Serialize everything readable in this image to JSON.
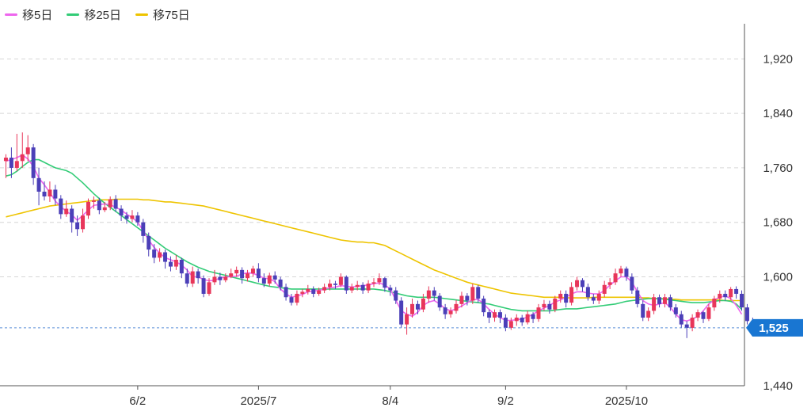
{
  "legend": {
    "ma5": {
      "label": "移5日",
      "color": "#ee66ee"
    },
    "ma25": {
      "label": "移25日",
      "color": "#33cc77"
    },
    "ma75": {
      "label": "移75日",
      "color": "#eec400"
    }
  },
  "colors": {
    "up": "#e8365a",
    "down": "#4b3fb8",
    "grid": "#d6d6d6",
    "axis": "#555555",
    "badge": "#1976d2",
    "current_line": "#5b8fd6"
  },
  "current_price": {
    "value": 1525,
    "label": "1,525"
  },
  "chart_data": {
    "type": "candlestick",
    "ylim": [
      1440,
      1960
    ],
    "y_ticks": [
      {
        "value": 1920,
        "label": "1,920"
      },
      {
        "value": 1840,
        "label": "1,840"
      },
      {
        "value": 1760,
        "label": "1,760"
      },
      {
        "value": 1680,
        "label": "1,680"
      },
      {
        "value": 1600,
        "label": "1,600"
      },
      {
        "value": 1440,
        "label": "1,440"
      }
    ],
    "x_ticks": [
      {
        "index": 24,
        "label": "6/2"
      },
      {
        "index": 46,
        "label": "2025/7"
      },
      {
        "index": 70,
        "label": "8/4"
      },
      {
        "index": 91,
        "label": "9/2"
      },
      {
        "index": 113,
        "label": "2025/10"
      }
    ],
    "n_days": 135,
    "candles": [
      [
        1770,
        1775,
        1780,
        1745
      ],
      [
        1775,
        1760,
        1790,
        1745
      ],
      [
        1760,
        1770,
        1810,
        1755
      ],
      [
        1770,
        1780,
        1812,
        1760
      ],
      [
        1780,
        1790,
        1808,
        1770
      ],
      [
        1790,
        1745,
        1795,
        1735
      ],
      [
        1745,
        1725,
        1760,
        1705
      ],
      [
        1725,
        1718,
        1740,
        1712
      ],
      [
        1718,
        1728,
        1740,
        1710
      ],
      [
        1728,
        1715,
        1735,
        1705
      ],
      [
        1715,
        1692,
        1720,
        1685
      ],
      [
        1692,
        1700,
        1712,
        1688
      ],
      [
        1700,
        1680,
        1705,
        1665
      ],
      [
        1680,
        1670,
        1690,
        1660
      ],
      [
        1670,
        1690,
        1700,
        1665
      ],
      [
        1690,
        1710,
        1715,
        1685
      ],
      [
        1710,
        1712,
        1718,
        1700
      ],
      [
        1712,
        1698,
        1716,
        1692
      ],
      [
        1698,
        1702,
        1710,
        1695
      ],
      [
        1702,
        1714,
        1718,
        1698
      ],
      [
        1714,
        1700,
        1720,
        1695
      ],
      [
        1700,
        1690,
        1705,
        1682
      ],
      [
        1690,
        1685,
        1695,
        1678
      ],
      [
        1685,
        1690,
        1698,
        1680
      ],
      [
        1690,
        1680,
        1695,
        1675
      ],
      [
        1680,
        1660,
        1685,
        1650
      ],
      [
        1660,
        1640,
        1665,
        1630
      ],
      [
        1640,
        1628,
        1648,
        1620
      ],
      [
        1628,
        1636,
        1642,
        1622
      ],
      [
        1636,
        1622,
        1640,
        1612
      ],
      [
        1622,
        1615,
        1630,
        1608
      ],
      [
        1615,
        1625,
        1632,
        1610
      ],
      [
        1625,
        1605,
        1628,
        1598
      ],
      [
        1605,
        1590,
        1612,
        1585
      ],
      [
        1590,
        1608,
        1615,
        1585
      ],
      [
        1608,
        1598,
        1612,
        1590
      ],
      [
        1598,
        1575,
        1602,
        1570
      ],
      [
        1575,
        1592,
        1598,
        1572
      ],
      [
        1592,
        1600,
        1610,
        1588
      ],
      [
        1600,
        1595,
        1606,
        1588
      ],
      [
        1595,
        1600,
        1605,
        1592
      ],
      [
        1600,
        1605,
        1612,
        1598
      ],
      [
        1605,
        1610,
        1615,
        1600
      ],
      [
        1610,
        1598,
        1614,
        1590
      ],
      [
        1598,
        1605,
        1610,
        1593
      ],
      [
        1605,
        1612,
        1616,
        1600
      ],
      [
        1612,
        1598,
        1620,
        1592
      ],
      [
        1598,
        1590,
        1605,
        1585
      ],
      [
        1590,
        1602,
        1606,
        1586
      ],
      [
        1602,
        1596,
        1608,
        1590
      ],
      [
        1596,
        1585,
        1600,
        1580
      ],
      [
        1585,
        1570,
        1590,
        1565
      ],
      [
        1570,
        1562,
        1575,
        1558
      ],
      [
        1562,
        1575,
        1580,
        1558
      ],
      [
        1575,
        1578,
        1582,
        1570
      ],
      [
        1578,
        1582,
        1588,
        1574
      ],
      [
        1582,
        1575,
        1586,
        1570
      ],
      [
        1575,
        1580,
        1584,
        1572
      ],
      [
        1580,
        1585,
        1590,
        1576
      ],
      [
        1585,
        1590,
        1596,
        1580
      ],
      [
        1590,
        1588,
        1594,
        1582
      ],
      [
        1588,
        1600,
        1605,
        1585
      ],
      [
        1600,
        1580,
        1602,
        1575
      ],
      [
        1580,
        1585,
        1590,
        1576
      ],
      [
        1585,
        1588,
        1594,
        1580
      ],
      [
        1588,
        1580,
        1592,
        1575
      ],
      [
        1580,
        1590,
        1595,
        1576
      ],
      [
        1590,
        1592,
        1598,
        1585
      ],
      [
        1592,
        1598,
        1605,
        1588
      ],
      [
        1598,
        1584,
        1600,
        1578
      ],
      [
        1584,
        1580,
        1588,
        1572
      ],
      [
        1580,
        1565,
        1585,
        1560
      ],
      [
        1565,
        1530,
        1570,
        1525
      ],
      [
        1530,
        1545,
        1555,
        1515
      ],
      [
        1545,
        1560,
        1568,
        1540
      ],
      [
        1560,
        1552,
        1565,
        1545
      ],
      [
        1552,
        1568,
        1575,
        1548
      ],
      [
        1568,
        1580,
        1586,
        1562
      ],
      [
        1580,
        1572,
        1585,
        1565
      ],
      [
        1572,
        1555,
        1576,
        1550
      ],
      [
        1555,
        1545,
        1560,
        1538
      ],
      [
        1545,
        1550,
        1555,
        1540
      ],
      [
        1550,
        1560,
        1566,
        1546
      ],
      [
        1560,
        1572,
        1578,
        1555
      ],
      [
        1572,
        1565,
        1576,
        1558
      ],
      [
        1565,
        1585,
        1590,
        1560
      ],
      [
        1585,
        1568,
        1588,
        1562
      ],
      [
        1568,
        1548,
        1572,
        1542
      ],
      [
        1548,
        1540,
        1552,
        1532
      ],
      [
        1540,
        1548,
        1552,
        1534
      ],
      [
        1548,
        1540,
        1552,
        1532
      ],
      [
        1540,
        1525,
        1545,
        1520
      ],
      [
        1525,
        1535,
        1540,
        1522
      ],
      [
        1535,
        1540,
        1545,
        1528
      ],
      [
        1540,
        1533,
        1544,
        1528
      ],
      [
        1533,
        1545,
        1550,
        1530
      ],
      [
        1545,
        1538,
        1548,
        1532
      ],
      [
        1538,
        1555,
        1560,
        1534
      ],
      [
        1555,
        1560,
        1566,
        1550
      ],
      [
        1560,
        1552,
        1565,
        1546
      ],
      [
        1552,
        1568,
        1572,
        1548
      ],
      [
        1568,
        1575,
        1580,
        1562
      ],
      [
        1575,
        1562,
        1580,
        1555
      ],
      [
        1562,
        1585,
        1592,
        1558
      ],
      [
        1585,
        1595,
        1600,
        1580
      ],
      [
        1595,
        1585,
        1598,
        1578
      ],
      [
        1585,
        1570,
        1590,
        1565
      ],
      [
        1570,
        1565,
        1575,
        1560
      ],
      [
        1565,
        1575,
        1580,
        1560
      ],
      [
        1575,
        1588,
        1594,
        1570
      ],
      [
        1588,
        1592,
        1598,
        1582
      ],
      [
        1592,
        1605,
        1612,
        1588
      ],
      [
        1605,
        1612,
        1616,
        1600
      ],
      [
        1612,
        1600,
        1615,
        1594
      ],
      [
        1600,
        1580,
        1605,
        1575
      ],
      [
        1580,
        1560,
        1585,
        1555
      ],
      [
        1560,
        1540,
        1565,
        1535
      ],
      [
        1540,
        1550,
        1555,
        1535
      ],
      [
        1550,
        1570,
        1575,
        1545
      ],
      [
        1570,
        1560,
        1574,
        1555
      ],
      [
        1560,
        1570,
        1575,
        1555
      ],
      [
        1570,
        1555,
        1574,
        1550
      ],
      [
        1555,
        1545,
        1560,
        1540
      ],
      [
        1545,
        1530,
        1550,
        1525
      ],
      [
        1530,
        1525,
        1535,
        1510
      ],
      [
        1525,
        1540,
        1545,
        1520
      ],
      [
        1540,
        1548,
        1552,
        1535
      ],
      [
        1548,
        1538,
        1550,
        1532
      ],
      [
        1538,
        1555,
        1560,
        1535
      ],
      [
        1555,
        1568,
        1572,
        1550
      ],
      [
        1568,
        1575,
        1580,
        1562
      ],
      [
        1575,
        1570,
        1580,
        1565
      ],
      [
        1570,
        1582,
        1585,
        1566
      ],
      [
        1582,
        1575,
        1586,
        1568
      ],
      [
        1575,
        1555,
        1580,
        1550
      ],
      [
        1555,
        1535,
        1560,
        1530
      ],
      [
        1535,
        1525,
        1540,
        1520
      ]
    ],
    "ma5": [
      1770,
      1772,
      1775,
      1779,
      1773,
      1762,
      1745,
      1735,
      1724,
      1711,
      1703,
      1696,
      1691,
      1683,
      1690,
      1698,
      1705,
      1706,
      1707,
      1706,
      1702,
      1698,
      1692,
      1687,
      1680,
      1668,
      1654,
      1643,
      1635,
      1628,
      1625,
      1622,
      1617,
      1610,
      1600,
      1600,
      1596,
      1594,
      1595,
      1598,
      1600,
      1600,
      1601,
      1604,
      1606,
      1605,
      1602,
      1598,
      1597,
      1593,
      1582,
      1575,
      1570,
      1572,
      1574,
      1578,
      1579,
      1580,
      1582,
      1584,
      1585,
      1587,
      1586,
      1585,
      1586,
      1587,
      1588,
      1590,
      1591,
      1588,
      1582,
      1566,
      1550,
      1545,
      1542,
      1548,
      1558,
      1563,
      1565,
      1560,
      1553,
      1550,
      1553,
      1557,
      1562,
      1566,
      1567,
      1560,
      1552,
      1545,
      1540,
      1536,
      1536,
      1537,
      1538,
      1541,
      1545,
      1550,
      1554,
      1558,
      1563,
      1566,
      1570,
      1575,
      1578,
      1578,
      1576,
      1575,
      1575,
      1580,
      1588,
      1594,
      1600,
      1600,
      1592,
      1578,
      1565,
      1560,
      1558,
      1560,
      1562,
      1555,
      1545,
      1537,
      1535,
      1538,
      1542,
      1550,
      1560,
      1566,
      1570,
      1572,
      1568,
      1558,
      1545
    ],
    "ma25": [
      1748,
      1750,
      1755,
      1762,
      1768,
      1772,
      1772,
      1768,
      1764,
      1760,
      1758,
      1756,
      1752,
      1745,
      1738,
      1730,
      1722,
      1715,
      1708,
      1702,
      1696,
      1690,
      1684,
      1678,
      1672,
      1666,
      1660,
      1654,
      1648,
      1642,
      1637,
      1632,
      1627,
      1622,
      1618,
      1614,
      1611,
      1608,
      1606,
      1604,
      1602,
      1600,
      1598,
      1596,
      1594,
      1592,
      1590,
      1588,
      1586,
      1585,
      1584,
      1583,
      1582,
      1582,
      1582,
      1582,
      1582,
      1582,
      1582,
      1582,
      1582,
      1582,
      1582,
      1582,
      1582,
      1582,
      1582,
      1582,
      1581,
      1580,
      1578,
      1576,
      1574,
      1572,
      1571,
      1570,
      1570,
      1570,
      1570,
      1569,
      1568,
      1567,
      1566,
      1565,
      1564,
      1563,
      1562,
      1561,
      1560,
      1558,
      1556,
      1554,
      1552,
      1551,
      1550,
      1550,
      1550,
      1550,
      1550,
      1550,
      1551,
      1552,
      1553,
      1553,
      1553,
      1554,
      1555,
      1556,
      1557,
      1558,
      1559,
      1560,
      1562,
      1564,
      1565,
      1566,
      1567,
      1568,
      1568,
      1568,
      1567,
      1566,
      1565,
      1564,
      1563,
      1562,
      1562,
      1562,
      1563,
      1564,
      1565,
      1565,
      1564,
      1560,
      1552
    ],
    "ma75": [
      1688,
      1690,
      1692,
      1694,
      1696,
      1698,
      1700,
      1702,
      1704,
      1705,
      1706,
      1707,
      1708,
      1709,
      1710,
      1711,
      1712,
      1713,
      1713,
      1713,
      1714,
      1714,
      1714,
      1714,
      1714,
      1713,
      1713,
      1712,
      1711,
      1710,
      1710,
      1709,
      1708,
      1707,
      1706,
      1705,
      1704,
      1702,
      1700,
      1698,
      1696,
      1694,
      1692,
      1690,
      1688,
      1686,
      1684,
      1682,
      1680,
      1678,
      1676,
      1674,
      1672,
      1670,
      1668,
      1666,
      1664,
      1662,
      1660,
      1658,
      1656,
      1654,
      1653,
      1652,
      1651,
      1651,
      1650,
      1650,
      1648,
      1646,
      1642,
      1638,
      1634,
      1630,
      1626,
      1622,
      1618,
      1614,
      1610,
      1607,
      1604,
      1601,
      1598,
      1595,
      1592,
      1590,
      1588,
      1586,
      1584,
      1582,
      1580,
      1578,
      1576,
      1575,
      1574,
      1573,
      1572,
      1571,
      1570,
      1570,
      1570,
      1570,
      1569,
      1569,
      1569,
      1569,
      1569,
      1570,
      1570,
      1570,
      1570,
      1570,
      1570,
      1570,
      1570,
      1570,
      1569,
      1569,
      1568,
      1568,
      1568,
      1567,
      1567,
      1566,
      1566,
      1566,
      1566,
      1566,
      1566,
      1566,
      1566,
      1565,
      1565,
      1565,
      1565
    ]
  }
}
